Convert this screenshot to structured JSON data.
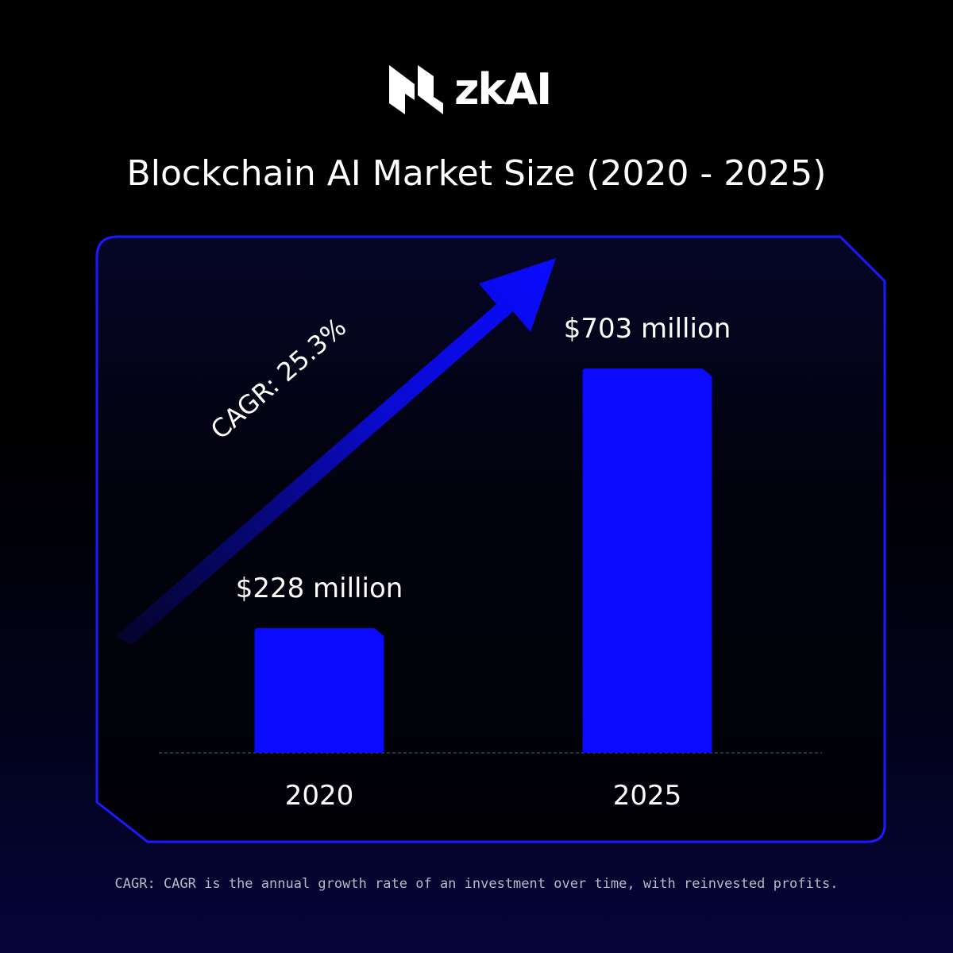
{
  "brand": {
    "logo_text": "zkAI",
    "logo_icon": "zkai-logo-icon"
  },
  "colors": {
    "background": "#000000",
    "accent": "#0a0aff",
    "frame": "#1a1aff",
    "text": "#ffffff"
  },
  "chart_data": {
    "type": "bar",
    "title": "Blockchain AI Market Size (2020 - 2025)",
    "categories": [
      "2020",
      "2025"
    ],
    "values": [
      228,
      703
    ],
    "data_labels": [
      "$228 million",
      "$703 million"
    ],
    "ylim": [
      0,
      703
    ],
    "grid": false,
    "annotation": "CAGR: 25.3%",
    "footnote": "CAGR: CAGR is the annual growth rate of an investment over time, with reinvested profits."
  }
}
